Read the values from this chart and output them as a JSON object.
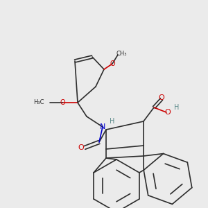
{
  "bg_color": "#ebebeb",
  "line_color": "#2d2d2d",
  "atom_colors": {
    "O": "#cc0000",
    "N": "#0000cc",
    "H": "#5a8a8a"
  },
  "figsize": [
    3.0,
    3.0
  ],
  "dpi": 100
}
